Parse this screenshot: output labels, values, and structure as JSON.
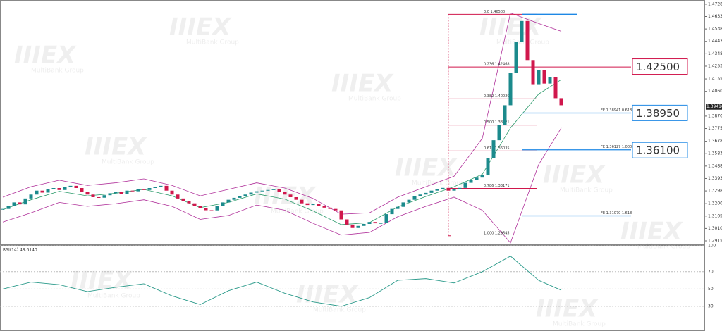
{
  "chart_data": {
    "type": "candlestick",
    "watermark": "IIIEX",
    "watermark_sub": "MultiBank Group",
    "up_color": "#1b8a8c",
    "down_color": "#d0174c",
    "close": [
      1.316,
      1.3185,
      1.321,
      1.3195,
      1.324,
      1.327,
      1.33,
      1.3285,
      1.331,
      1.332,
      1.3305,
      1.333,
      1.3337,
      1.332,
      1.329,
      1.327,
      1.325,
      1.3246,
      1.3265,
      1.328,
      1.329,
      1.3275,
      1.33,
      1.3295,
      1.331,
      1.3305,
      1.332,
      1.333,
      1.3337,
      1.33,
      1.327,
      1.324,
      1.322,
      1.3203,
      1.318,
      1.3165,
      1.315,
      1.3149,
      1.318,
      1.321,
      1.323,
      1.3245,
      1.3256,
      1.327,
      1.3285,
      1.3295,
      1.33,
      1.3305,
      1.331,
      1.329,
      1.327,
      1.325,
      1.323,
      1.3203,
      1.319,
      1.32,
      1.318,
      1.317,
      1.316,
      1.3149,
      1.308,
      1.304,
      1.3014,
      1.303,
      1.3045,
      1.306,
      1.305,
      1.3052,
      1.312,
      1.316,
      1.3176,
      1.321,
      1.323,
      1.326,
      1.327,
      1.3283,
      1.33,
      1.331,
      1.3321,
      1.33,
      1.3315,
      1.3321,
      1.336,
      1.338,
      1.34,
      1.3417,
      1.355,
      1.3686,
      1.38,
      1.3954,
      1.42,
      1.4438,
      1.4599,
      1.43,
      1.4115,
      1.4223,
      1.412,
      1.4169,
      1.4008,
      1.3954
    ],
    "bands": {
      "x": [
        0,
        5,
        10,
        15,
        20,
        25,
        30,
        35,
        40,
        45,
        50,
        55,
        60,
        65,
        70,
        75,
        80,
        85,
        90,
        95,
        99
      ],
      "series": [
        {
          "color": "#b0309a",
          "values": [
            1.325,
            1.333,
            1.338,
            1.334,
            1.336,
            1.339,
            1.334,
            1.326,
            1.331,
            1.336,
            1.332,
            1.324,
            1.312,
            1.313,
            1.325,
            1.333,
            1.341,
            1.37,
            1.466,
            1.458,
            1.452
          ]
        },
        {
          "color": "#2a9a6a",
          "values": [
            1.3155,
            1.323,
            1.3295,
            1.326,
            1.328,
            1.331,
            1.326,
            1.317,
            1.321,
            1.3275,
            1.3235,
            1.3145,
            1.304,
            1.3055,
            1.3175,
            1.3255,
            1.333,
            1.3425,
            1.378,
            1.404,
            1.415
          ]
        },
        {
          "color": "#b0309a",
          "values": [
            1.306,
            1.313,
            1.321,
            1.318,
            1.32,
            1.323,
            1.318,
            1.308,
            1.311,
            1.319,
            1.315,
            1.305,
            1.296,
            1.298,
            1.31,
            1.318,
            1.325,
            1.315,
            1.29,
            1.35,
            1.378
          ]
        }
      ]
    },
    "ylim": [
      1.2894,
      1.4749
    ],
    "yticks": [
      {
        "value": 1.4728,
        "label": "1.47280"
      },
      {
        "value": 1.4633,
        "label": "1.46330"
      },
      {
        "value": 1.4538,
        "label": "1.45380"
      },
      {
        "value": 1.4443,
        "label": "1.44430"
      },
      {
        "value": 1.4348,
        "label": "1.43480"
      },
      {
        "value": 1.4253,
        "label": "1.42530"
      },
      {
        "value": 1.41555,
        "label": "1.41555"
      },
      {
        "value": 1.40605,
        "label": "1.40605"
      },
      {
        "value": 1.38705,
        "label": "1.38705"
      },
      {
        "value": 1.37755,
        "label": "1.37755"
      },
      {
        "value": 1.3678,
        "label": "1.36780"
      },
      {
        "value": 1.3583,
        "label": "1.35830"
      },
      {
        "value": 1.3488,
        "label": "1.34880"
      },
      {
        "value": 1.3393,
        "label": "1.33930"
      },
      {
        "value": 1.3298,
        "label": "1.32980"
      },
      {
        "value": 1.32005,
        "label": "1.32005"
      },
      {
        "value": 1.31055,
        "label": "1.31055"
      },
      {
        "value": 1.30105,
        "label": "1.30105"
      },
      {
        "value": 1.29155,
        "label": "1.29155"
      }
    ],
    "current_price": {
      "value": 1.39416,
      "label": "1.39416"
    },
    "fib_color": "#d0174c",
    "fib": [
      {
        "label": "0.0  1.46500",
        "value": 1.465
      },
      {
        "label": "0.236  1.42468",
        "value": 1.42468
      },
      {
        "label": "0.382  1.40029",
        "value": 1.40029
      },
      {
        "label": "0.500  1.38021",
        "value": 1.38021
      },
      {
        "label": "0.618  1.36035",
        "value": 1.36035
      },
      {
        "label": "0.786  1.33171",
        "value": 1.33171
      },
      {
        "label": "1.000  1.29545",
        "value": 1.29545
      }
    ],
    "fe_color": "#1e88e5",
    "fe": [
      {
        "label": "FE 1.38941  0.618",
        "value": 1.38941
      },
      {
        "label": "FE 1.36127  1.000",
        "value": 1.36127
      },
      {
        "label": "FE 1.31070  1.618",
        "value": 1.3107
      }
    ],
    "levels": [
      {
        "value": 1.425,
        "label": "1.42500",
        "color": "#d0174c"
      },
      {
        "value": 1.3895,
        "label": "1.38950",
        "color": "#1e88e5"
      },
      {
        "value": 1.361,
        "label": "1.36100",
        "color": "#1e88e5"
      }
    ],
    "rsi": {
      "label": "RSI(14) 48.6143",
      "color": "#2a9a8a",
      "x": [
        0,
        5,
        10,
        15,
        20,
        25,
        30,
        35,
        40,
        45,
        50,
        55,
        60,
        65,
        70,
        75,
        80,
        85,
        90,
        95,
        99
      ],
      "values": [
        50,
        58,
        55,
        47,
        52,
        56,
        42,
        32,
        48,
        58,
        45,
        35,
        30,
        40,
        60,
        62,
        57,
        70,
        88,
        60,
        48.6143
      ],
      "ylim": [
        3,
        100
      ],
      "yticks": [
        100,
        70,
        50,
        30
      ]
    }
  }
}
